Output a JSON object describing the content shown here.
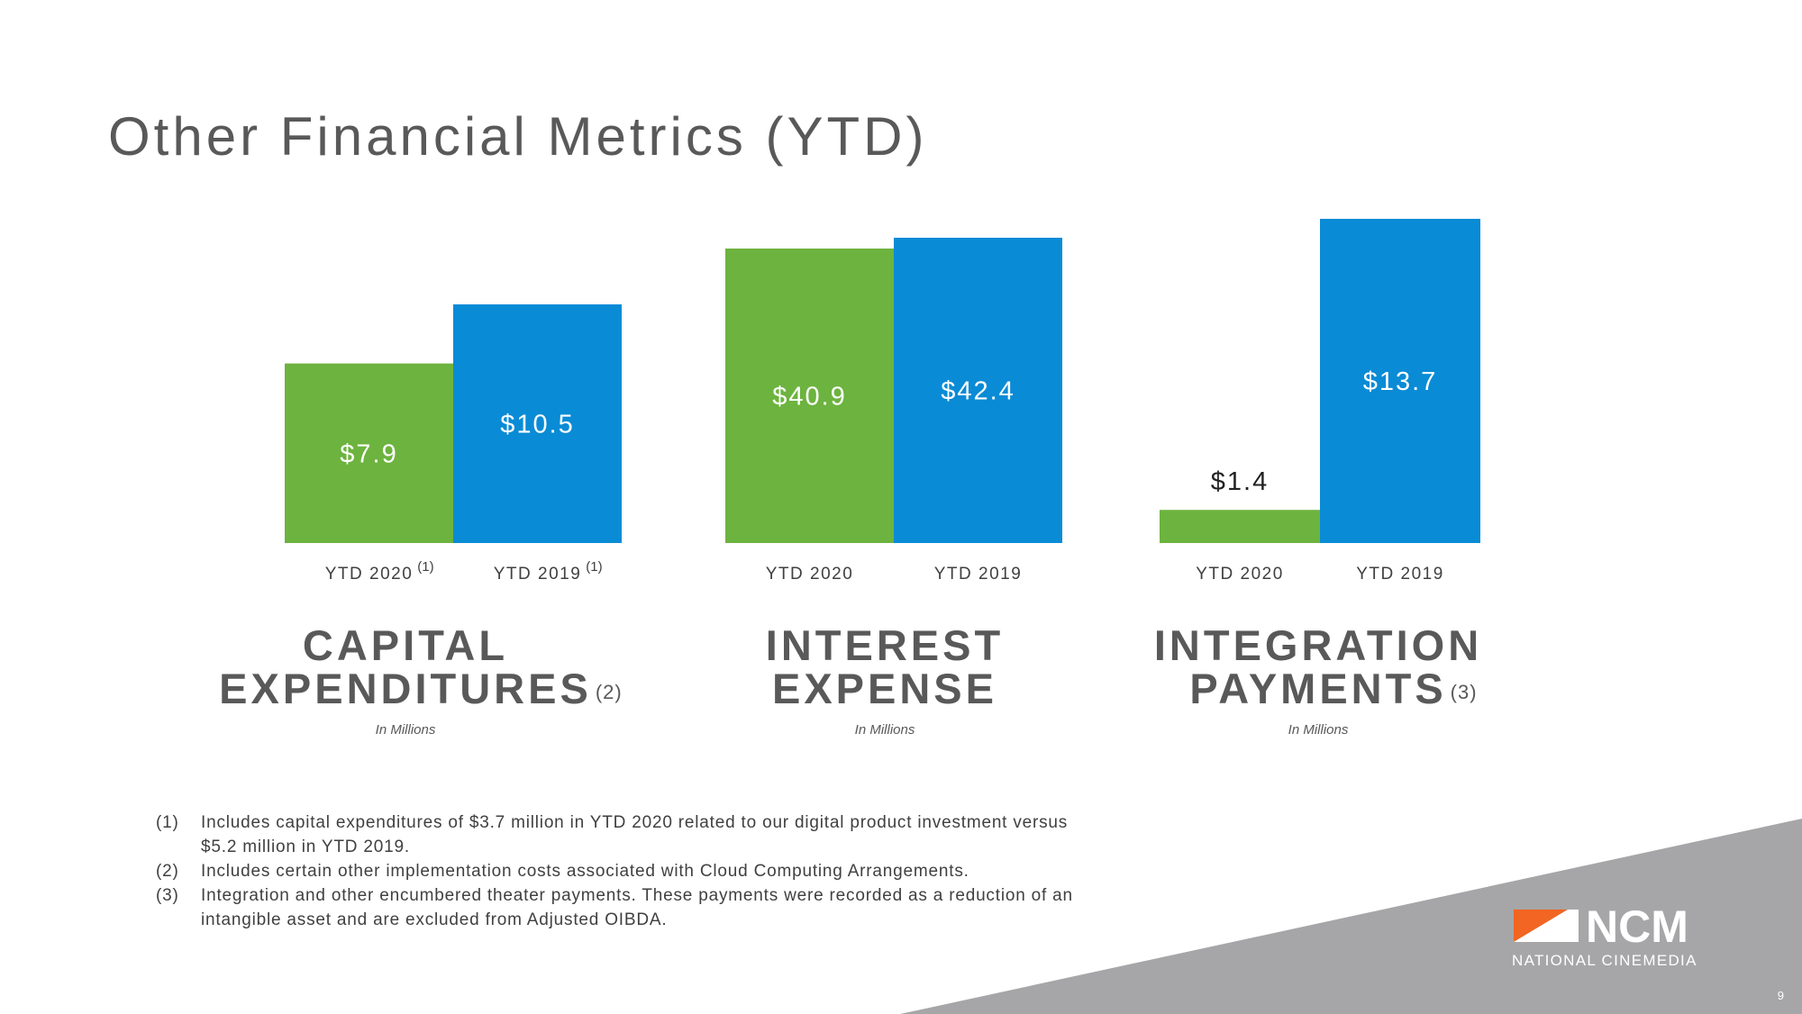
{
  "title": "Other Financial Metrics (YTD)",
  "chart_data": [
    {
      "type": "bar",
      "title_lines": [
        "CAPITAL",
        "EXPENDITURES"
      ],
      "title_note": "(2)",
      "subtitle": "In Millions",
      "categories": [
        "YTD 2020",
        "YTD 2019"
      ],
      "category_notes": [
        "(1)",
        "(1)"
      ],
      "values": [
        7.9,
        10.5
      ],
      "value_labels": [
        "$7.9",
        "$10.5"
      ],
      "colors": [
        "#6db33f",
        "#0a8bd6"
      ]
    },
    {
      "type": "bar",
      "title_lines": [
        "INTEREST",
        "EXPENSE"
      ],
      "subtitle": "In Millions",
      "categories": [
        "YTD 2020",
        "YTD 2019"
      ],
      "values": [
        40.9,
        42.4
      ],
      "value_labels": [
        "$40.9",
        "$42.4"
      ],
      "colors": [
        "#6db33f",
        "#0a8bd6"
      ]
    },
    {
      "type": "bar",
      "title_lines": [
        "INTEGRATION",
        "PAYMENTS"
      ],
      "title_note": "(3)",
      "subtitle": "In Millions",
      "categories": [
        "YTD 2020",
        "YTD 2019"
      ],
      "values": [
        1.4,
        13.7
      ],
      "value_labels": [
        "$1.4",
        "$13.7"
      ],
      "colors": [
        "#6db33f",
        "#0a8bd6"
      ]
    }
  ],
  "footnotes": [
    {
      "marker": "(1)",
      "lines": [
        "Includes capital expenditures of $3.7 million in YTD 2020 related to our digital product investment versus",
        "$5.2 million in YTD 2019."
      ]
    },
    {
      "marker": "(2)",
      "lines": [
        "Includes certain other implementation costs associated with Cloud Computing Arrangements."
      ]
    },
    {
      "marker": "(3)",
      "lines": [
        "Integration and other encumbered theater payments.  These payments were recorded as a reduction of an",
        "intangible asset and are excluded from Adjusted OIBDA."
      ]
    }
  ],
  "logo": {
    "mark": "NCM",
    "tagline": "NATIONAL CINEMEDIA"
  },
  "page_number": "9"
}
